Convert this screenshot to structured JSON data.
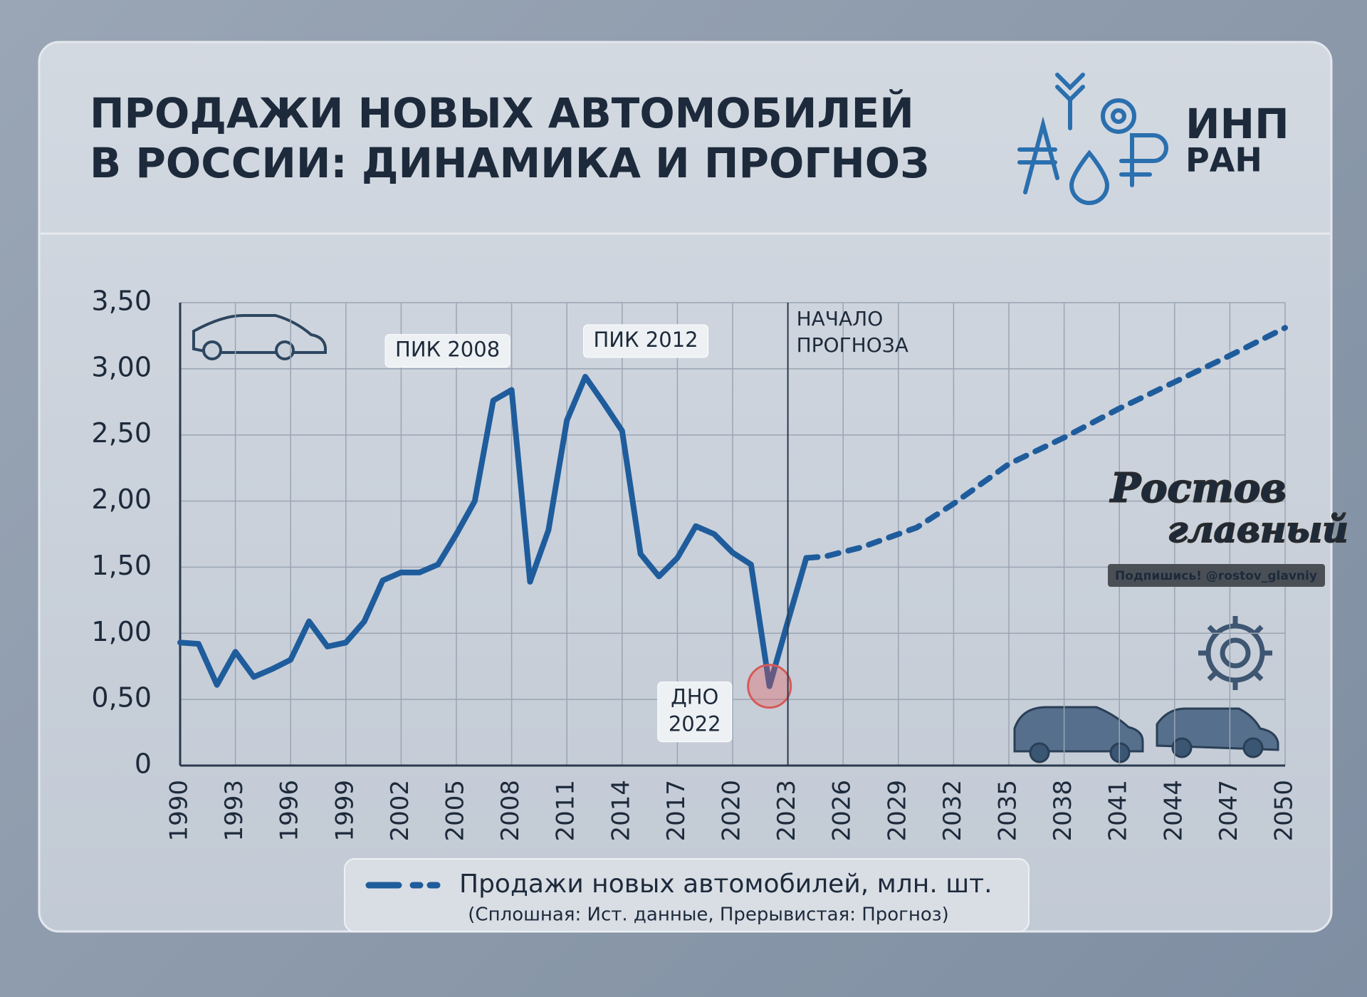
{
  "chart_data": {
    "type": "line",
    "title": [
      "ПРОДАЖИ НОВЫХ АВТОМОБИЛЕЙ",
      "В РОССИИ: ДИНАМИКА И ПРОГНОЗ"
    ],
    "x": [
      1990,
      1991,
      1992,
      1993,
      1994,
      1995,
      1996,
      1997,
      1998,
      1999,
      2000,
      2001,
      2002,
      2003,
      2004,
      2005,
      2006,
      2007,
      2008,
      2009,
      2010,
      2011,
      2012,
      2013,
      2014,
      2015,
      2016,
      2017,
      2018,
      2019,
      2020,
      2021,
      2022,
      2023,
      2024,
      2025,
      2027,
      2030,
      2032,
      2035,
      2038,
      2041,
      2044,
      2047,
      2050
    ],
    "series": [
      {
        "name": "Продажи новых автомобилей, млн. шт.",
        "color": "#1f5c9c",
        "values": [
          0.93,
          0.92,
          0.61,
          0.86,
          0.67,
          0.73,
          0.8,
          1.09,
          0.9,
          0.93,
          1.09,
          1.4,
          1.46,
          1.46,
          1.52,
          1.75,
          2.0,
          2.76,
          2.84,
          1.39,
          1.78,
          2.61,
          2.94,
          2.74,
          2.53,
          1.6,
          1.43,
          1.57,
          1.81,
          1.75,
          1.61,
          1.52,
          0.6,
          1.09,
          1.57,
          1.58,
          1.65,
          1.8,
          1.98,
          2.28,
          2.48,
          2.7,
          2.9,
          3.1,
          3.31
        ]
      }
    ],
    "dash_from_x": 2024,
    "legend_note": "(Сплошная: Ист. данные, Прерывистая: Прогноз)",
    "xlim": [
      1990,
      2050
    ],
    "xticks": [
      1990,
      1993,
      1996,
      1999,
      2002,
      2005,
      2008,
      2011,
      2014,
      2017,
      2020,
      2023,
      2026,
      2029,
      2032,
      2035,
      2038,
      2041,
      2044,
      2047,
      2050
    ],
    "ylim": [
      0,
      3.5
    ],
    "yticks": [
      0,
      {
        "value": 0.5,
        "label": "0,50"
      },
      {
        "value": 1,
        "label": "1,00"
      },
      {
        "value": 1.5,
        "label": "1,50"
      },
      {
        "value": 2,
        "label": "2,00"
      },
      {
        "value": 2.5,
        "label": "2,50"
      },
      {
        "value": 3,
        "label": "3,00"
      },
      {
        "value": 3.5,
        "label": "3,50"
      }
    ],
    "grid": true,
    "annotations": [
      {
        "text": [
          "ПИК 2008"
        ],
        "x": 2008
      },
      {
        "text": [
          "ПИК 2012"
        ],
        "x": 2012
      },
      {
        "text": [
          "ДНО",
          "2022"
        ],
        "x": 2022
      },
      {
        "text": [
          "НАЧАЛО",
          "ПРОГНОЗА"
        ],
        "x": 2023
      }
    ]
  },
  "logo": [
    "ИНП",
    "РАН"
  ],
  "watermark": {
    "name": [
      "Ростов",
      "главный"
    ],
    "caption": "Подпишись! @rostov_glavniy"
  }
}
